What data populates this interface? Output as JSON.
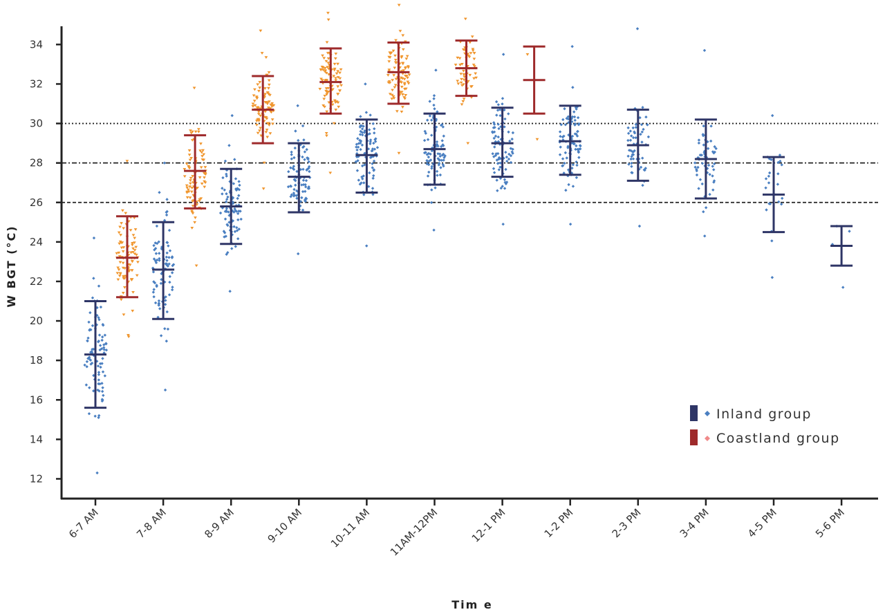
{
  "chart_data": {
    "type": "scatter",
    "xlabel": "Tim e",
    "ylabel": "W BGT (°C)",
    "ylim": [
      11,
      35.5
    ],
    "yticks": [
      12,
      14,
      16,
      18,
      20,
      22,
      24,
      26,
      28,
      30,
      32,
      34
    ],
    "categories": [
      "6-7 AM",
      "7-8 AM",
      "8-9 AM",
      "9-10 AM",
      "10-11 AM",
      "11AM-12PM",
      "12-1 PM",
      "1-2 PM",
      "2-3 PM",
      "3-4 PM",
      "4-5 PM",
      "5-6 PM"
    ],
    "reference_lines": [
      {
        "y": 30,
        "style": "dotted"
      },
      {
        "y": 28,
        "style": "dash-dot"
      },
      {
        "y": 26,
        "style": "dashed"
      }
    ],
    "grid": false,
    "legend_position": "bottom-right",
    "series": [
      {
        "name": "Inland group",
        "color": "#2e3566",
        "point_color": "#4a7fc1",
        "marker": "diamond",
        "summary": [
          {
            "category": "6-7 AM",
            "mean": 18.3,
            "lower": 15.6,
            "upper": 21.0,
            "n": 90,
            "min": 12.3,
            "max": 24.2
          },
          {
            "category": "7-8 AM",
            "mean": 22.6,
            "lower": 20.1,
            "upper": 25.0,
            "n": 90,
            "min": 16.5,
            "max": 28.0
          },
          {
            "category": "8-9 AM",
            "mean": 25.8,
            "lower": 23.9,
            "upper": 27.7,
            "n": 90,
            "min": 21.5,
            "max": 30.4
          },
          {
            "category": "9-10 AM",
            "mean": 27.3,
            "lower": 25.5,
            "upper": 29.0,
            "n": 90,
            "min": 23.4,
            "max": 30.9
          },
          {
            "category": "10-11 AM",
            "mean": 28.4,
            "lower": 26.5,
            "upper": 30.2,
            "n": 90,
            "min": 23.8,
            "max": 32.0
          },
          {
            "category": "11AM-12PM",
            "mean": 28.7,
            "lower": 26.9,
            "upper": 30.5,
            "n": 90,
            "min": 24.6,
            "max": 32.7
          },
          {
            "category": "12-1 PM",
            "mean": 29.0,
            "lower": 27.3,
            "upper": 30.8,
            "n": 90,
            "min": 24.9,
            "max": 33.5
          },
          {
            "category": "1-2 PM",
            "mean": 29.1,
            "lower": 27.4,
            "upper": 30.9,
            "n": 90,
            "min": 24.9,
            "max": 33.9
          },
          {
            "category": "2-3 PM",
            "mean": 28.9,
            "lower": 27.1,
            "upper": 30.7,
            "n": 60,
            "min": 24.8,
            "max": 34.8
          },
          {
            "category": "3-4 PM",
            "mean": 28.2,
            "lower": 26.2,
            "upper": 30.2,
            "n": 55,
            "min": 24.3,
            "max": 33.7
          },
          {
            "category": "4-5 PM",
            "mean": 26.4,
            "lower": 24.5,
            "upper": 28.3,
            "n": 25,
            "min": 22.2,
            "max": 30.4
          },
          {
            "category": "5-6 PM",
            "mean": 23.8,
            "lower": 22.8,
            "upper": 24.8,
            "n": 4,
            "min": 21.7,
            "max": 24.8
          }
        ]
      },
      {
        "name": "Coastland group",
        "color": "#9e2a2b",
        "point_color": "#f0962e",
        "marker": "triangle-down",
        "summary": [
          {
            "category": "6-7 AM",
            "mean": 23.2,
            "lower": 21.2,
            "upper": 25.3,
            "n": 90,
            "min": 19.2,
            "max": 28.1
          },
          {
            "category": "7-8 AM",
            "mean": 27.6,
            "lower": 25.7,
            "upper": 29.4,
            "n": 90,
            "min": 22.8,
            "max": 31.8
          },
          {
            "category": "8-9 AM",
            "mean": 30.7,
            "lower": 29.0,
            "upper": 32.4,
            "n": 90,
            "min": 26.7,
            "max": 34.7
          },
          {
            "category": "9-10 AM",
            "mean": 32.1,
            "lower": 30.5,
            "upper": 33.8,
            "n": 90,
            "min": 27.5,
            "max": 35.6
          },
          {
            "category": "10-11 AM",
            "mean": 32.6,
            "lower": 31.0,
            "upper": 34.1,
            "n": 90,
            "min": 28.5,
            "max": 36.0
          },
          {
            "category": "11AM-12PM",
            "mean": 32.8,
            "lower": 31.4,
            "upper": 34.2,
            "n": 60,
            "min": 29.0,
            "max": 35.3
          },
          {
            "category": "12-1 PM",
            "mean": 32.2,
            "lower": 30.5,
            "upper": 33.9,
            "n": 2,
            "min": 29.2,
            "max": 33.5
          }
        ]
      }
    ]
  }
}
